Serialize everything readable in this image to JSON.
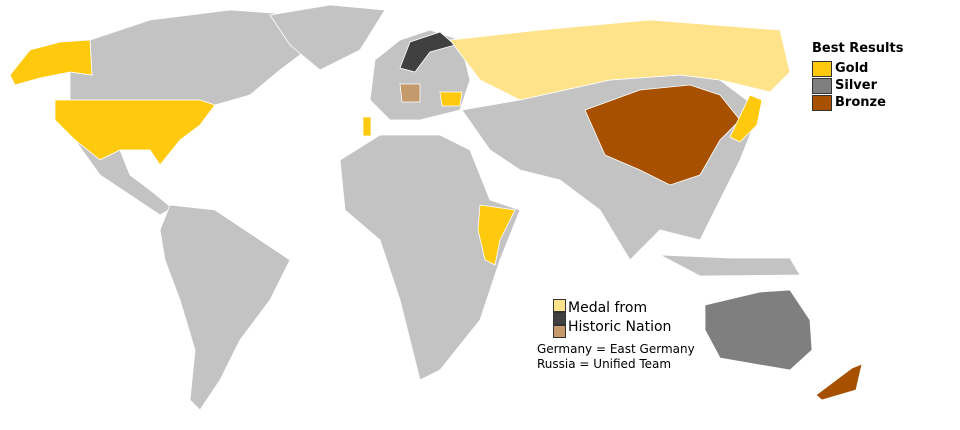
{
  "colors": {
    "none": "#c3c3c3",
    "gold": "#ffc90e",
    "silver": "#7f7f7f",
    "bronze": "#a65000",
    "historic_gold": "#ffe38a",
    "historic_silver": "#404040",
    "historic_bronze": "#c49a6c"
  },
  "legend": {
    "title": "Best Results",
    "items": [
      {
        "label": "Gold",
        "color": "#ffc90e"
      },
      {
        "label": "Silver",
        "color": "#7f7f7f"
      },
      {
        "label": "Bronze",
        "color": "#a65000"
      }
    ]
  },
  "historic_legend": {
    "line1": "Medal from",
    "line2": "Historic Nation",
    "swatches": [
      "#ffe38a",
      "#404040",
      "#c49a6c"
    ],
    "notes": [
      "Germany = East Germany",
      "Russia = Unified Team"
    ]
  }
}
